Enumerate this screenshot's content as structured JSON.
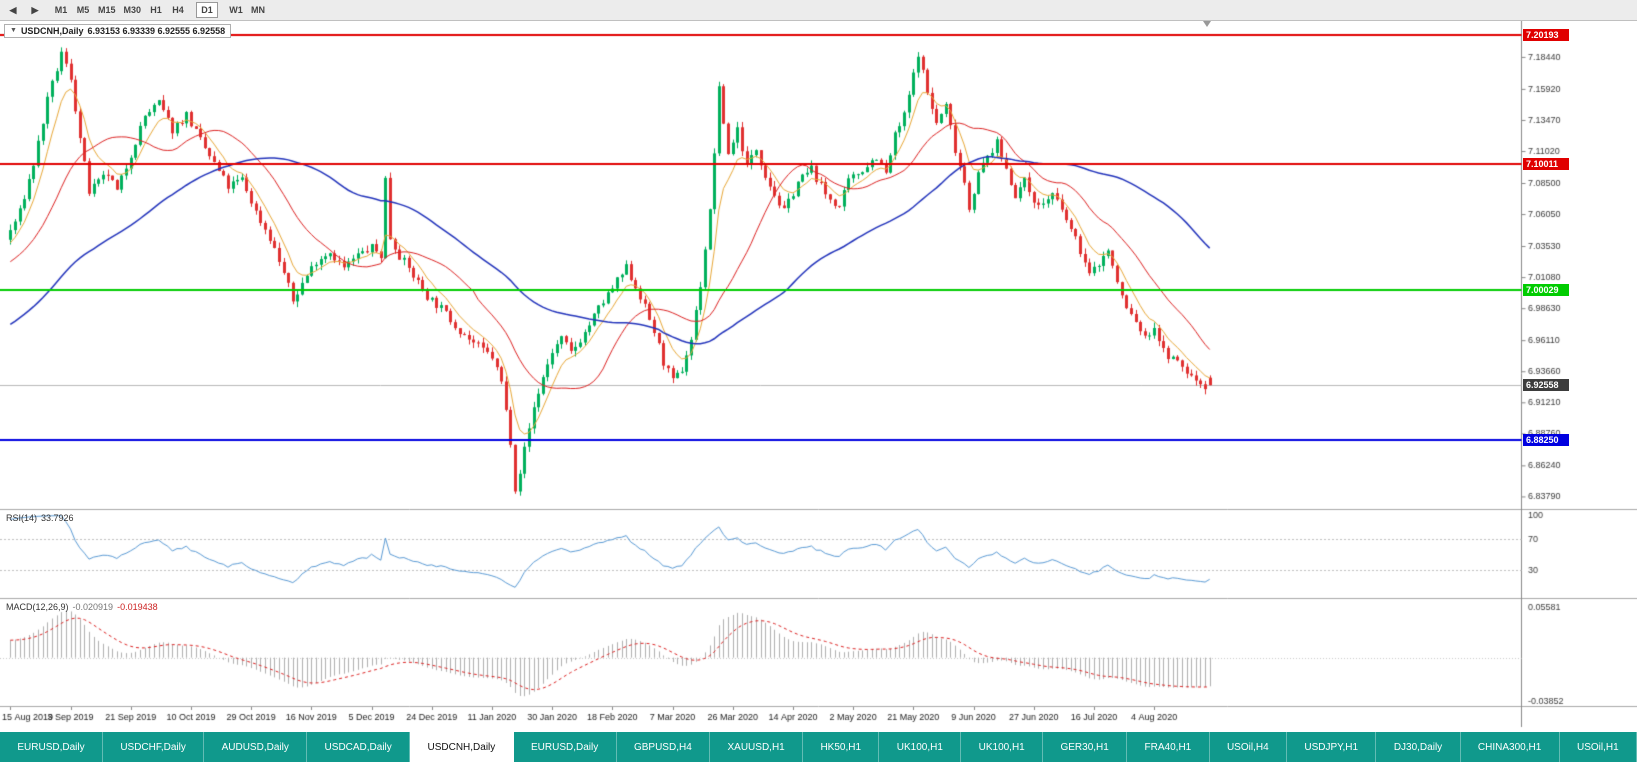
{
  "toolbar": {
    "nav_buttons": [
      "◀",
      "▶"
    ],
    "timeframes": [
      "M1",
      "M5",
      "M15",
      "M30",
      "H1",
      "H4",
      "D1",
      "W1",
      "MN"
    ],
    "active_timeframe": "D1"
  },
  "chart": {
    "dropdown_icon": "▼",
    "title": "USDCNH,Daily",
    "ohlc": "6.93153 6.93339 6.92555 6.92558"
  },
  "chart_data": {
    "type": "candlestick",
    "symbol": "USDCNH",
    "timeframe": "Daily",
    "open": "6.93153",
    "high": "6.93339",
    "low": "6.92555",
    "close": "6.92558",
    "price_min": 6.828,
    "price_max": 7.2135,
    "y_ticks": [
      "7.18440",
      "7.15920",
      "7.13470",
      "7.11020",
      "7.08500",
      "7.06050",
      "7.03530",
      "7.01080",
      "6.98630",
      "6.96110",
      "6.93660",
      "6.91210",
      "6.88760",
      "6.86240",
      "6.83790"
    ],
    "x_labels": [
      "15 Aug 2019",
      "3 Sep 2019",
      "21 Sep 2019",
      "10 Oct 2019",
      "29 Oct 2019",
      "16 Nov 2019",
      "5 Dec 2019",
      "24 Dec 2019",
      "11 Jan 2020",
      "30 Jan 2020",
      "18 Feb 2020",
      "7 Mar 2020",
      "26 Mar 2020",
      "14 Apr 2020",
      "2 May 2020",
      "21 May 2020",
      "9 Jun 2020",
      "27 Jun 2020",
      "16 Jul 2020",
      "4 Aug 2020"
    ],
    "bars_per_label": 13,
    "num_bars": 260,
    "h_lines": [
      {
        "price": 7.20193,
        "label": "7.20193",
        "color": "#e00000",
        "width": 2
      },
      {
        "price": 7.10011,
        "label": "7.10011",
        "color": "#e00000",
        "width": 2
      },
      {
        "price": 7.00029,
        "label": "7.00029",
        "color": "#00cc00",
        "width": 2
      },
      {
        "price": 6.8825,
        "label": "6.88250",
        "color": "#0000e0",
        "width": 2
      }
    ],
    "bid_line": {
      "price": 6.92558,
      "label": "6.92558",
      "line_color": "#b8b8b8",
      "box_color": "#3c3c3c"
    },
    "prehistory": [
      [
        -60,
        6.898
      ],
      [
        -50,
        6.92
      ],
      [
        -40,
        6.944
      ],
      [
        -30,
        6.968
      ],
      [
        -20,
        6.996
      ],
      [
        -10,
        7.02
      ],
      [
        -2,
        7.036
      ]
    ],
    "price_path": [
      [
        0,
        7.04
      ],
      [
        3,
        7.062
      ],
      [
        6,
        7.1
      ],
      [
        9,
        7.15
      ],
      [
        12,
        7.187
      ],
      [
        14,
        7.168
      ],
      [
        16,
        7.12
      ],
      [
        18,
        7.078
      ],
      [
        20,
        7.085
      ],
      [
        22,
        7.092
      ],
      [
        24,
        7.078
      ],
      [
        27,
        7.108
      ],
      [
        30,
        7.138
      ],
      [
        33,
        7.148
      ],
      [
        36,
        7.127
      ],
      [
        39,
        7.139
      ],
      [
        42,
        7.118
      ],
      [
        45,
        7.1
      ],
      [
        48,
        7.082
      ],
      [
        51,
        7.088
      ],
      [
        54,
        7.062
      ],
      [
        57,
        7.042
      ],
      [
        60,
        7.014
      ],
      [
        62,
        6.992
      ],
      [
        64,
        7.006
      ],
      [
        67,
        7.024
      ],
      [
        70,
        7.031
      ],
      [
        73,
        7.018
      ],
      [
        76,
        7.028
      ],
      [
        79,
        7.034
      ],
      [
        81,
        7.028
      ],
      [
        82,
        7.088
      ],
      [
        83,
        7.042
      ],
      [
        85,
        7.028
      ],
      [
        88,
        7.012
      ],
      [
        91,
        6.996
      ],
      [
        94,
        6.986
      ],
      [
        97,
        6.973
      ],
      [
        100,
        6.962
      ],
      [
        103,
        6.953
      ],
      [
        105,
        6.948
      ],
      [
        107,
        6.928
      ],
      [
        109,
        6.882
      ],
      [
        110,
        6.845
      ],
      [
        111,
        6.858
      ],
      [
        112,
        6.875
      ],
      [
        114,
        6.908
      ],
      [
        116,
        6.932
      ],
      [
        118,
        6.952
      ],
      [
        120,
        6.962
      ],
      [
        122,
        6.951
      ],
      [
        125,
        6.967
      ],
      [
        128,
        6.986
      ],
      [
        131,
        7.002
      ],
      [
        134,
        7.018
      ],
      [
        137,
        6.996
      ],
      [
        140,
        6.968
      ],
      [
        142,
        6.944
      ],
      [
        144,
        6.928
      ],
      [
        146,
        6.938
      ],
      [
        148,
        6.962
      ],
      [
        150,
        7.005
      ],
      [
        152,
        7.062
      ],
      [
        154,
        7.158
      ],
      [
        156,
        7.108
      ],
      [
        158,
        7.128
      ],
      [
        160,
        7.098
      ],
      [
        162,
        7.112
      ],
      [
        164,
        7.092
      ],
      [
        166,
        7.076
      ],
      [
        168,
        7.062
      ],
      [
        171,
        7.086
      ],
      [
        174,
        7.096
      ],
      [
        177,
        7.076
      ],
      [
        180,
        7.066
      ],
      [
        182,
        7.086
      ],
      [
        185,
        7.096
      ],
      [
        188,
        7.106
      ],
      [
        190,
        7.092
      ],
      [
        192,
        7.122
      ],
      [
        194,
        7.138
      ],
      [
        196,
        7.17
      ],
      [
        197,
        7.188
      ],
      [
        199,
        7.156
      ],
      [
        201,
        7.132
      ],
      [
        203,
        7.146
      ],
      [
        205,
        7.112
      ],
      [
        207,
        7.086
      ],
      [
        208,
        7.066
      ],
      [
        210,
        7.092
      ],
      [
        212,
        7.106
      ],
      [
        214,
        7.116
      ],
      [
        216,
        7.096
      ],
      [
        218,
        7.076
      ],
      [
        220,
        7.086
      ],
      [
        223,
        7.066
      ],
      [
        226,
        7.076
      ],
      [
        229,
        7.056
      ],
      [
        232,
        7.032
      ],
      [
        234,
        7.012
      ],
      [
        236,
        7.022
      ],
      [
        238,
        7.032
      ],
      [
        240,
        7.006
      ],
      [
        242,
        6.986
      ],
      [
        244,
        6.976
      ],
      [
        246,
        6.962
      ],
      [
        248,
        6.972
      ],
      [
        250,
        6.952
      ],
      [
        252,
        6.946
      ],
      [
        254,
        6.94
      ],
      [
        256,
        6.932
      ],
      [
        259,
        6.9256
      ]
    ],
    "last_candle": {
      "open": 6.93153,
      "high": 6.93339,
      "low": 6.92555,
      "close": 6.92558
    },
    "moving_averages": [
      {
        "name": "ma-fast",
        "type": "ema",
        "period": 7,
        "color": "#e8a838",
        "width": 1
      },
      {
        "name": "ma-mid",
        "type": "sma",
        "period": 20,
        "color": "#dd2222",
        "width": 1
      },
      {
        "name": "ma-slow",
        "type": "sma",
        "period": 60,
        "color": "#2233bb",
        "width": 1.5
      }
    ],
    "indicators": {
      "rsi": {
        "label": "RSI(14)",
        "value": "33.7926",
        "period": 14,
        "levels": [
          70,
          30
        ],
        "scale_labels": [
          "100",
          "70",
          "30"
        ],
        "color": "#5b9bd5",
        "level_color": "#c0c0c0"
      },
      "macd": {
        "label": "MACD(12,26,9)",
        "value_main": "-0.020919",
        "value_signal": "-0.019438",
        "fast": 12,
        "slow": 26,
        "signal": 9,
        "scale_top": "0.05581",
        "scale_bottom": "-0.03852",
        "hist_color": "#b0b0b0",
        "signal_color": "#dd2222",
        "zero_color": "#c8c8c8"
      }
    },
    "colors": {
      "up": "#00b05c",
      "down": "#e03030",
      "background": "#ffffff",
      "axis_text": "#3c3c3c",
      "separator": "#a8a8a8",
      "axis_line": "#888888"
    }
  },
  "tabbar": {
    "background": "#10998c",
    "active_index": 4,
    "tabs": [
      "EURUSD,Daily",
      "USDCHF,Daily",
      "AUDUSD,Daily",
      "USDCAD,Daily",
      "USDCNH,Daily",
      "EURUSD,Daily",
      "GBPUSD,H4",
      "XAUUSD,H1",
      "HK50,H1",
      "UK100,H1",
      "UK100,H1",
      "GER30,H1",
      "FRA40,H1",
      "USOil,H4",
      "USDJPY,H1",
      "DJ30,Daily",
      "CHINA300,H1",
      "USOil,H1"
    ]
  }
}
